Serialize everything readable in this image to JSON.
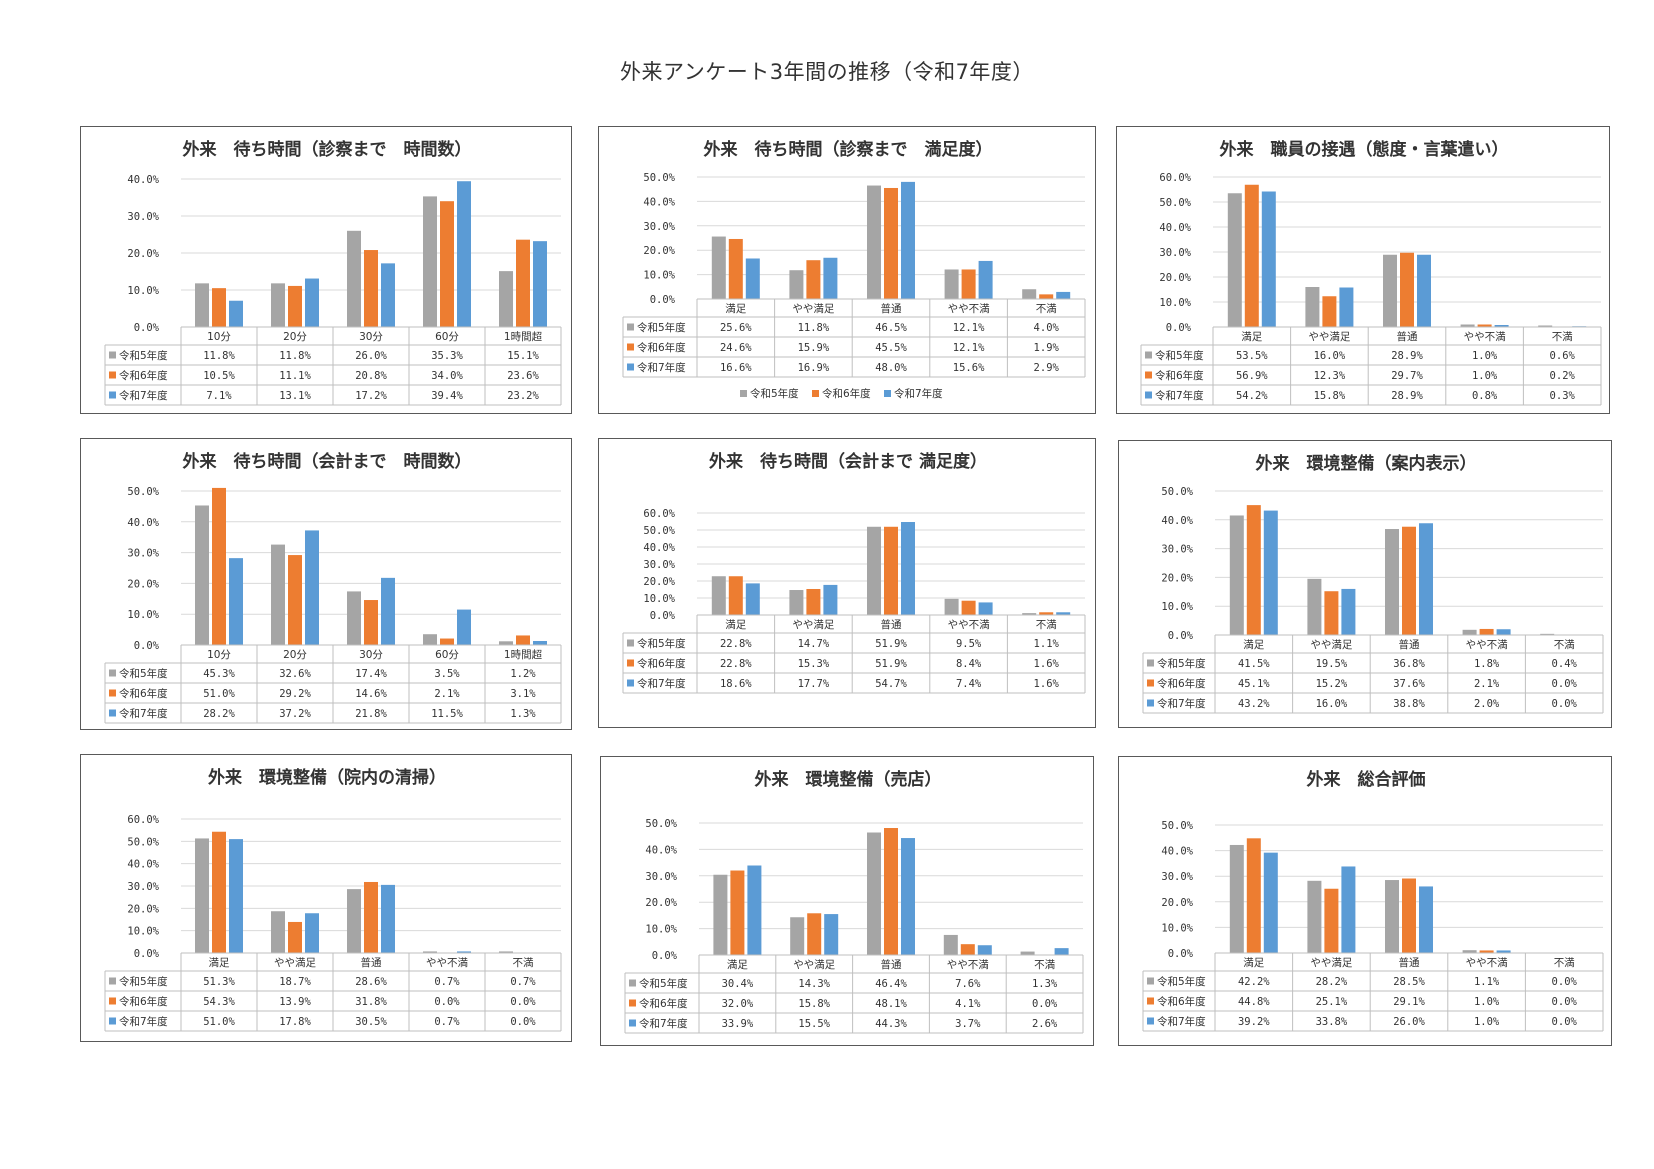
{
  "page_title": "外来アンケート3年間の推移（令和7年度）",
  "colors": {
    "series": [
      "#a5a5a5",
      "#ed7d31",
      "#5b9bd5"
    ],
    "grid": "#d9d9d9",
    "axis": "#bfbfbf",
    "border": "#595959"
  },
  "chart_data": [
    {
      "type": "bar",
      "title": "外来　待ち時間（診察まで　時間数）",
      "categories": [
        "10分",
        "20分",
        "30分",
        "60分",
        "1時間超"
      ],
      "ylim": [
        0,
        40
      ],
      "yticks": [
        "0.0%",
        "10.0%",
        "20.0%",
        "30.0%",
        "40.0%"
      ],
      "grid": true,
      "series": [
        {
          "name": "令和5年度",
          "values": [
            11.8,
            11.8,
            26.0,
            35.3,
            15.1
          ],
          "labels": [
            "11.8%",
            "11.8%",
            "26.0%",
            "35.3%",
            "15.1%"
          ]
        },
        {
          "name": "令和6年度",
          "values": [
            10.5,
            11.1,
            20.8,
            34.0,
            23.6
          ],
          "labels": [
            "10.5%",
            "11.1%",
            "20.8%",
            "34.0%",
            "23.6%"
          ]
        },
        {
          "name": "令和7年度",
          "values": [
            7.1,
            13.1,
            17.2,
            39.4,
            23.2
          ],
          "labels": [
            "7.1%",
            "13.1%",
            "17.2%",
            "39.4%",
            "23.2%"
          ]
        }
      ]
    },
    {
      "type": "bar",
      "title": "外来　待ち時間（診察まで　満足度）",
      "categories": [
        "満足",
        "やや満足",
        "普通",
        "やや不満",
        "不満"
      ],
      "ylim": [
        0,
        50
      ],
      "yticks": [
        "0.0%",
        "10.0%",
        "20.0%",
        "30.0%",
        "40.0%",
        "50.0%"
      ],
      "grid": true,
      "legend": [
        "令和5年度",
        "令和6年度",
        "令和7年度"
      ],
      "series": [
        {
          "name": "令和5年度",
          "values": [
            25.6,
            11.8,
            46.5,
            12.1,
            4.0
          ],
          "labels": [
            "25.6%",
            "11.8%",
            "46.5%",
            "12.1%",
            "4.0%"
          ]
        },
        {
          "name": "令和6年度",
          "values": [
            24.6,
            15.9,
            45.5,
            12.1,
            1.9
          ],
          "labels": [
            "24.6%",
            "15.9%",
            "45.5%",
            "12.1%",
            "1.9%"
          ]
        },
        {
          "name": "令和7年度",
          "values": [
            16.6,
            16.9,
            48.0,
            15.6,
            2.9
          ],
          "labels": [
            "16.6%",
            "16.9%",
            "48.0%",
            "15.6%",
            "2.9%"
          ]
        }
      ]
    },
    {
      "type": "bar",
      "title": "外来　職員の接遇（態度・言葉遣い）",
      "categories": [
        "満足",
        "やや満足",
        "普通",
        "やや不満",
        "不満"
      ],
      "ylim": [
        0,
        60
      ],
      "yticks": [
        "0.0%",
        "10.0%",
        "20.0%",
        "30.0%",
        "40.0%",
        "50.0%",
        "60.0%"
      ],
      "grid": true,
      "series": [
        {
          "name": "令和5年度",
          "values": [
            53.5,
            16.0,
            28.9,
            1.0,
            0.6
          ],
          "labels": [
            "53.5%",
            "16.0%",
            "28.9%",
            "1.0%",
            "0.6%"
          ]
        },
        {
          "name": "令和6年度",
          "values": [
            56.9,
            12.3,
            29.7,
            1.0,
            0.2
          ],
          "labels": [
            "56.9%",
            "12.3%",
            "29.7%",
            "1.0%",
            "0.2%"
          ]
        },
        {
          "name": "令和7年度",
          "values": [
            54.2,
            15.8,
            28.9,
            0.8,
            0.3
          ],
          "labels": [
            "54.2%",
            "15.8%",
            "28.9%",
            "0.8%",
            "0.3%"
          ]
        }
      ]
    },
    {
      "type": "bar",
      "title": "外来　待ち時間（会計まで　時間数）",
      "categories": [
        "10分",
        "20分",
        "30分",
        "60分",
        "1時間超"
      ],
      "ylim": [
        0,
        50
      ],
      "yticks": [
        "0.0%",
        "10.0%",
        "20.0%",
        "30.0%",
        "40.0%",
        "50.0%"
      ],
      "grid": true,
      "series": [
        {
          "name": "令和5年度",
          "values": [
            45.3,
            32.6,
            17.4,
            3.5,
            1.2
          ],
          "labels": [
            "45.3%",
            "32.6%",
            "17.4%",
            "3.5%",
            "1.2%"
          ]
        },
        {
          "name": "令和6年度",
          "values": [
            51.0,
            29.2,
            14.6,
            2.1,
            3.1
          ],
          "labels": [
            "51.0%",
            "29.2%",
            "14.6%",
            "2.1%",
            "3.1%"
          ]
        },
        {
          "name": "令和7年度",
          "values": [
            28.2,
            37.2,
            21.8,
            11.5,
            1.3
          ],
          "labels": [
            "28.2%",
            "37.2%",
            "21.8%",
            "11.5%",
            "1.3%"
          ]
        }
      ]
    },
    {
      "type": "bar",
      "title": "外来　待ち時間（会計まで 満足度）",
      "categories": [
        "満足",
        "やや満足",
        "普通",
        "やや不満",
        "不満"
      ],
      "ylim": [
        0,
        60
      ],
      "yticks": [
        "0.0%",
        "10.0%",
        "20.0%",
        "30.0%",
        "40.0%",
        "50.0%",
        "60.0%"
      ],
      "grid": true,
      "series": [
        {
          "name": "令和5年度",
          "values": [
            22.8,
            14.7,
            51.9,
            9.5,
            1.1
          ],
          "labels": [
            "22.8%",
            "14.7%",
            "51.9%",
            "9.5%",
            "1.1%"
          ]
        },
        {
          "name": "令和6年度",
          "values": [
            22.8,
            15.3,
            51.9,
            8.4,
            1.6
          ],
          "labels": [
            "22.8%",
            "15.3%",
            "51.9%",
            "8.4%",
            "1.6%"
          ]
        },
        {
          "name": "令和7年度",
          "values": [
            18.6,
            17.7,
            54.7,
            7.4,
            1.6
          ],
          "labels": [
            "18.6%",
            "17.7%",
            "54.7%",
            "7.4%",
            "1.6%"
          ]
        }
      ]
    },
    {
      "type": "bar",
      "title": "外来　環境整備（案内表示）",
      "categories": [
        "満足",
        "やや満足",
        "普通",
        "やや不満",
        "不満"
      ],
      "ylim": [
        0,
        50
      ],
      "yticks": [
        "0.0%",
        "10.0%",
        "20.0%",
        "30.0%",
        "40.0%",
        "50.0%"
      ],
      "grid": true,
      "series": [
        {
          "name": "令和5年度",
          "values": [
            41.5,
            19.5,
            36.8,
            1.8,
            0.4
          ],
          "labels": [
            "41.5%",
            "19.5%",
            "36.8%",
            "1.8%",
            "0.4%"
          ]
        },
        {
          "name": "令和6年度",
          "values": [
            45.1,
            15.2,
            37.6,
            2.1,
            0.0
          ],
          "labels": [
            "45.1%",
            "15.2%",
            "37.6%",
            "2.1%",
            "0.0%"
          ]
        },
        {
          "name": "令和7年度",
          "values": [
            43.2,
            16.0,
            38.8,
            2.0,
            0.0
          ],
          "labels": [
            "43.2%",
            "16.0%",
            "38.8%",
            "2.0%",
            "0.0%"
          ]
        }
      ]
    },
    {
      "type": "bar",
      "title": "外来　環境整備（院内の清掃）",
      "categories": [
        "満足",
        "やや満足",
        "普通",
        "やや不満",
        "不満"
      ],
      "ylim": [
        0,
        60
      ],
      "yticks": [
        "0.0%",
        "10.0%",
        "20.0%",
        "30.0%",
        "40.0%",
        "50.0%",
        "60.0%"
      ],
      "grid": true,
      "series": [
        {
          "name": "令和5年度",
          "values": [
            51.3,
            18.7,
            28.6,
            0.7,
            0.7
          ],
          "labels": [
            "51.3%",
            "18.7%",
            "28.6%",
            "0.7%",
            "0.7%"
          ]
        },
        {
          "name": "令和6年度",
          "values": [
            54.3,
            13.9,
            31.8,
            0.0,
            0.0
          ],
          "labels": [
            "54.3%",
            "13.9%",
            "31.8%",
            "0.0%",
            "0.0%"
          ]
        },
        {
          "name": "令和7年度",
          "values": [
            51.0,
            17.8,
            30.5,
            0.7,
            0.0
          ],
          "labels": [
            "51.0%",
            "17.8%",
            "30.5%",
            "0.7%",
            "0.0%"
          ]
        }
      ]
    },
    {
      "type": "bar",
      "title": "外来　環境整備（売店）",
      "categories": [
        "満足",
        "やや満足",
        "普通",
        "やや不満",
        "不満"
      ],
      "ylim": [
        0,
        50
      ],
      "yticks": [
        "0.0%",
        "10.0%",
        "20.0%",
        "30.0%",
        "40.0%",
        "50.0%"
      ],
      "grid": true,
      "series": [
        {
          "name": "令和5年度",
          "values": [
            30.4,
            14.3,
            46.4,
            7.6,
            1.3
          ],
          "labels": [
            "30.4%",
            "14.3%",
            "46.4%",
            "7.6%",
            "1.3%"
          ]
        },
        {
          "name": "令和6年度",
          "values": [
            32.0,
            15.8,
            48.1,
            4.1,
            0.0
          ],
          "labels": [
            "32.0%",
            "15.8%",
            "48.1%",
            "4.1%",
            "0.0%"
          ]
        },
        {
          "name": "令和7年度",
          "values": [
            33.9,
            15.5,
            44.3,
            3.7,
            2.6
          ],
          "labels": [
            "33.9%",
            "15.5%",
            "44.3%",
            "3.7%",
            "2.6%"
          ]
        }
      ]
    },
    {
      "type": "bar",
      "title": "外来　総合評価",
      "categories": [
        "満足",
        "やや満足",
        "普通",
        "やや不満",
        "不満"
      ],
      "ylim": [
        0,
        50
      ],
      "yticks": [
        "0.0%",
        "10.0%",
        "20.0%",
        "30.0%",
        "40.0%",
        "50.0%"
      ],
      "grid": true,
      "series": [
        {
          "name": "令和5年度",
          "values": [
            42.2,
            28.2,
            28.5,
            1.1,
            0.0
          ],
          "labels": [
            "42.2%",
            "28.2%",
            "28.5%",
            "1.1%",
            "0.0%"
          ]
        },
        {
          "name": "令和6年度",
          "values": [
            44.8,
            25.1,
            29.1,
            1.0,
            0.0
          ],
          "labels": [
            "44.8%",
            "25.1%",
            "29.1%",
            "1.0%",
            "0.0%"
          ]
        },
        {
          "name": "令和7年度",
          "values": [
            39.2,
            33.8,
            26.0,
            1.0,
            0.0
          ],
          "labels": [
            "39.2%",
            "33.8%",
            "26.0%",
            "1.0%",
            "0.0%"
          ]
        }
      ]
    }
  ]
}
